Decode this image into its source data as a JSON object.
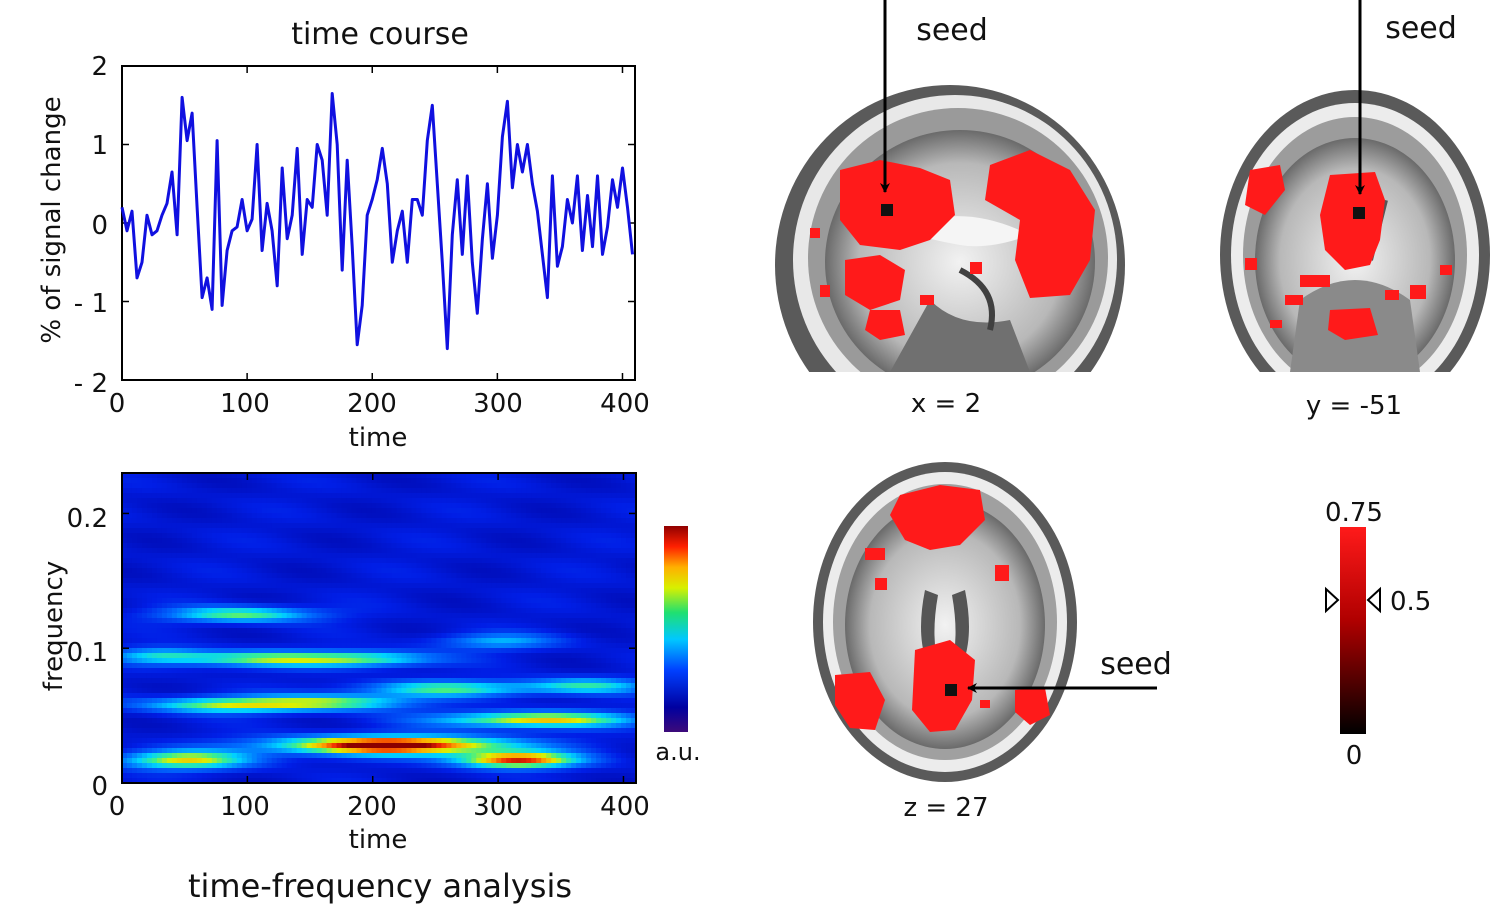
{
  "figure": {
    "time_course": {
      "title": "time course",
      "xlabel": "time",
      "ylabel": "% of signal change",
      "xticks": [
        "0",
        "100",
        "200",
        "300",
        "400"
      ],
      "yticks": [
        "2",
        "1",
        "0",
        "- 1",
        "- 2"
      ],
      "line_color": "#1010e0"
    },
    "tf": {
      "xlabel": "time",
      "ylabel": "frequency",
      "xticks": [
        "0",
        "100",
        "200",
        "300",
        "400"
      ],
      "yticks": [
        "0.2",
        "0.1",
        "0"
      ],
      "caption": "time-frequency analysis",
      "colorbar_label": "a.u."
    },
    "brain": {
      "seed_label": "seed",
      "sagittal_label": "x = 2",
      "coronal_label": "y = -51",
      "axial_label": "z = 27",
      "colorbar": {
        "max": "0.75",
        "mid": "0.5",
        "min": "0"
      },
      "overlay_color": "#ff1a1a"
    }
  },
  "chart_data": [
    {
      "type": "line",
      "title": "time course",
      "xlabel": "time",
      "ylabel": "% of signal change",
      "xlim": [
        0,
        410
      ],
      "ylim": [
        -2,
        2
      ],
      "series": [
        {
          "x": [
            0,
            4,
            8,
            12,
            16,
            20,
            24,
            28,
            32,
            36,
            40,
            44,
            48,
            52,
            56,
            60,
            64,
            68,
            72,
            76,
            80,
            84,
            88,
            92,
            96,
            100,
            104,
            108,
            112,
            116,
            120,
            124,
            128,
            132,
            136,
            140,
            144,
            148,
            152,
            156,
            160,
            164,
            168,
            172,
            176,
            180,
            184,
            188,
            192,
            196,
            200,
            204,
            208,
            212,
            216,
            220,
            224,
            228,
            232,
            236,
            240,
            244,
            248,
            252,
            256,
            260,
            264,
            268,
            272,
            276,
            280,
            284,
            288,
            292,
            296,
            300,
            304,
            308,
            312,
            316,
            320,
            324,
            328,
            332,
            336,
            340,
            344,
            348,
            352,
            356,
            360,
            364,
            368,
            372,
            376,
            380,
            384,
            388,
            392,
            396,
            400,
            404,
            408
          ],
          "values": [
            0.2,
            -0.1,
            0.15,
            -0.7,
            -0.5,
            0.1,
            -0.15,
            -0.1,
            0.1,
            0.25,
            0.65,
            -0.15,
            1.6,
            1.05,
            1.4,
            0.2,
            -0.95,
            -0.7,
            -1.1,
            1.05,
            -1.05,
            -0.35,
            -0.1,
            -0.05,
            0.3,
            -0.1,
            0.05,
            1.0,
            -0.35,
            0.25,
            -0.1,
            -0.8,
            0.7,
            -0.2,
            0.1,
            0.95,
            -0.4,
            0.3,
            0.2,
            1.0,
            0.8,
            0.1,
            1.65,
            1.0,
            -0.6,
            0.8,
            -0.3,
            -1.55,
            -1.05,
            0.1,
            0.3,
            0.55,
            0.95,
            0.5,
            -0.5,
            -0.1,
            0.15,
            -0.5,
            0.3,
            0.3,
            0.1,
            1.05,
            1.5,
            0.5,
            -0.5,
            -1.6,
            -0.15,
            0.55,
            -0.4,
            0.6,
            -0.5,
            -1.15,
            -0.2,
            0.5,
            -0.45,
            0.1,
            1.1,
            1.55,
            0.45,
            1.0,
            0.65,
            1.0,
            0.5,
            0.15,
            -0.4,
            -0.95,
            0.6,
            -0.55,
            -0.3,
            0.3,
            0.0,
            0.6,
            -0.35,
            0.35,
            -0.3,
            0.6,
            -0.4,
            -0.05,
            0.55,
            0.2,
            0.7,
            0.2,
            -0.4
          ]
        }
      ]
    },
    {
      "type": "heatmap",
      "xlabel": "time",
      "ylabel": "frequency",
      "xlim": [
        0,
        410
      ],
      "ylim": [
        0,
        0.23
      ],
      "colorbar_label": "a.u.",
      "blobs": [
        {
          "t": 50,
          "f": 0.017,
          "w": 55,
          "h": 0.007,
          "v": 0.6
        },
        {
          "t": 215,
          "f": 0.028,
          "w": 95,
          "h": 0.007,
          "v": 0.95
        },
        {
          "t": 315,
          "f": 0.017,
          "w": 50,
          "h": 0.006,
          "v": 0.8
        },
        {
          "t": 330,
          "f": 0.047,
          "w": 80,
          "h": 0.006,
          "v": 0.65
        },
        {
          "t": 85,
          "f": 0.058,
          "w": 70,
          "h": 0.006,
          "v": 0.55
        },
        {
          "t": 110,
          "f": 0.092,
          "w": 75,
          "h": 0.006,
          "v": 0.5
        },
        {
          "t": 95,
          "f": 0.125,
          "w": 60,
          "h": 0.006,
          "v": 0.5
        },
        {
          "t": 260,
          "f": 0.07,
          "w": 70,
          "h": 0.006,
          "v": 0.45
        },
        {
          "t": 200,
          "f": 0.092,
          "w": 55,
          "h": 0.006,
          "v": 0.4
        },
        {
          "t": 370,
          "f": 0.072,
          "w": 50,
          "h": 0.006,
          "v": 0.4
        },
        {
          "t": 175,
          "f": 0.06,
          "w": 60,
          "h": 0.006,
          "v": 0.45
        },
        {
          "t": 300,
          "f": 0.105,
          "w": 50,
          "h": 0.006,
          "v": 0.3
        },
        {
          "t": 30,
          "f": 0.095,
          "w": 40,
          "h": 0.006,
          "v": 0.3
        }
      ]
    }
  ]
}
